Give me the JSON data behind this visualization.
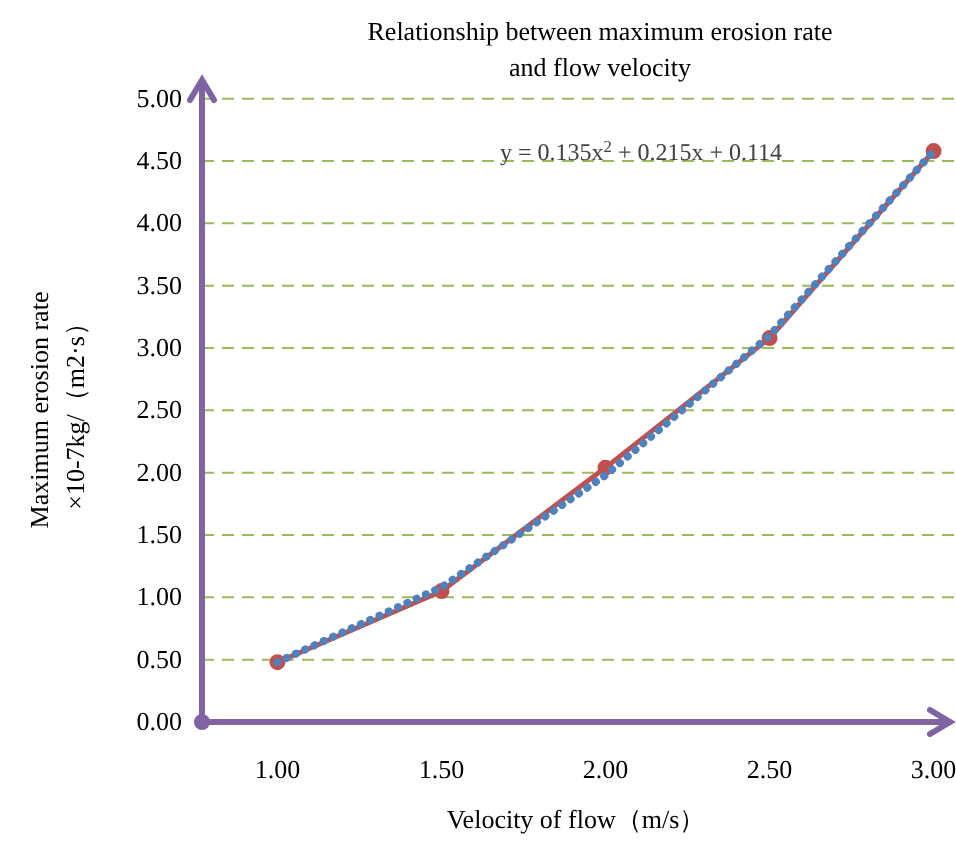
{
  "chart_data": {
    "type": "line",
    "title": "Relationship between maximum erosion rate and flow velocity",
    "xlabel": "Velocity of flow（m/s）",
    "ylabel": "Maximum erosion rate ×10-7kg/（m2·s）",
    "x": [
      1.0,
      1.5,
      2.0,
      2.5,
      3.0
    ],
    "series": [
      {
        "color": "#c0504d",
        "values": [
          0.48,
          1.05,
          2.04,
          3.08,
          4.58
        ],
        "marker": "circle",
        "line_style": "solid"
      },
      {
        "type": "line",
        "color": "#4f81bd",
        "x": [
          1.0,
          1.5,
          2.0,
          2.5,
          3.0
        ],
        "values": [
          0.48,
          1.08,
          1.98,
          3.1,
          4.58
        ],
        "marker": "none",
        "line_style": "dotted"
      }
    ],
    "annotations": [
      "y = 0.135x$^{2}$ + 0.215x + 0.114"
    ],
    "xlim": [
      0.77,
      3.05
    ],
    "ylim": [
      0,
      5.15
    ],
    "xticks": [
      {
        "value": 1,
        "label": "1.00"
      },
      {
        "value": 1.5,
        "label": "1.50"
      },
      {
        "value": 2,
        "label": "2.00"
      },
      {
        "value": 2.5,
        "label": "2.50"
      },
      {
        "value": 3,
        "label": "3.00"
      }
    ],
    "yticks": [
      {
        "value": 0,
        "label": "0.00"
      },
      {
        "value": 0.5,
        "label": "0.50"
      },
      {
        "value": 1,
        "label": "1.00"
      },
      {
        "value": 1.5,
        "label": "1.50"
      },
      {
        "value": 2,
        "label": "2.00"
      },
      {
        "value": 2.5,
        "label": "2.50"
      },
      {
        "value": 3,
        "label": "3.00"
      },
      {
        "value": 3.5,
        "label": "3.50"
      },
      {
        "value": 4,
        "label": "4.00"
      },
      {
        "value": 4.5,
        "label": "4.50"
      },
      {
        "value": 5,
        "label": "5.00"
      }
    ],
    "grid": "y"
  }
}
